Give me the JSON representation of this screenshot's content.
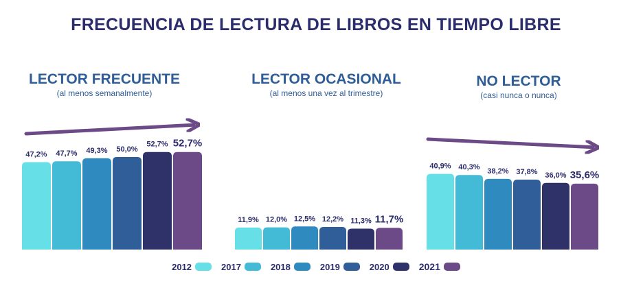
{
  "chart_data": {
    "type": "bar",
    "title": "FRECUENCIA DE LECTURA DE LIBROS EN TIEMPO LIBRE",
    "legend_position": "bottom",
    "series_names": [
      "2012",
      "2017",
      "2018",
      "2019",
      "2020",
      "2021"
    ],
    "series_colors": [
      "#67dfe6",
      "#43bad6",
      "#2f8bbf",
      "#2f5e98",
      "#2f3169",
      "#6c4a87"
    ],
    "groups": [
      {
        "name": "LECTOR FRECUENTE",
        "subtitle": "(al menos semanalmente)",
        "values": [
          47.2,
          47.7,
          49.3,
          50.0,
          52.7,
          52.7
        ],
        "labels": [
          "47,2%",
          "47,7%",
          "49,3%",
          "50,0%",
          "52,7%",
          "52,7%"
        ],
        "trend": "up"
      },
      {
        "name": "LECTOR OCASIONAL",
        "subtitle": "(al menos una vez al trimestre)",
        "values": [
          11.9,
          12.0,
          12.5,
          12.2,
          11.3,
          11.7
        ],
        "labels": [
          "11,9%",
          "12,0%",
          "12,5%",
          "12,2%",
          "11,3%",
          "11,7%"
        ],
        "trend": "none"
      },
      {
        "name": "NO LECTOR",
        "subtitle": "(casi nunca o nunca)",
        "values": [
          40.9,
          40.3,
          38.2,
          37.8,
          36.0,
          35.6
        ],
        "labels": [
          "40,9%",
          "40,3%",
          "38,2%",
          "37,8%",
          "36,0%",
          "35,6%"
        ],
        "trend": "down"
      }
    ],
    "trend_color": "#6c4a87",
    "label_color": "#2b2c6b"
  }
}
